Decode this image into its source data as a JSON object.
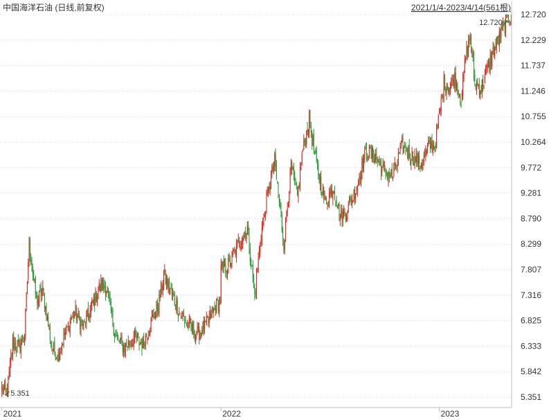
{
  "chart_data": {
    "type": "candlestick",
    "title": "中国海洋石油 (日线,前复权)",
    "range_label": "2021/1/4-2023/4/14(561根)",
    "bar_count": 561,
    "ylim": [
      5.351,
      12.72
    ],
    "yticks": [
      "12.720",
      "12.229",
      "11.737",
      "11.246",
      "10.755",
      "10.264",
      "9.772",
      "9.281",
      "8.790",
      "8.299",
      "7.807",
      "7.316",
      "6.825",
      "6.333",
      "5.842",
      "5.351"
    ],
    "xticks": [
      {
        "label": "2021",
        "index": 0
      },
      {
        "label": "2022",
        "index": 241
      },
      {
        "label": "2023",
        "index": 481
      }
    ],
    "max_marker": {
      "text": "12.720↗",
      "value": 12.72
    },
    "min_marker": {
      "text": "↙5.351",
      "value": 5.351
    },
    "anchors": [
      [
        0,
        5.5
      ],
      [
        6,
        5.45
      ],
      [
        12,
        6.4
      ],
      [
        18,
        6.3
      ],
      [
        25,
        6.55
      ],
      [
        30,
        8.3
      ],
      [
        38,
        7.2
      ],
      [
        45,
        7.4
      ],
      [
        55,
        6.3
      ],
      [
        62,
        6.15
      ],
      [
        70,
        6.6
      ],
      [
        80,
        7.0
      ],
      [
        90,
        6.7
      ],
      [
        100,
        7.15
      ],
      [
        108,
        7.5
      ],
      [
        115,
        7.45
      ],
      [
        125,
        6.5
      ],
      [
        135,
        6.3
      ],
      [
        145,
        6.5
      ],
      [
        155,
        6.35
      ],
      [
        165,
        6.85
      ],
      [
        172,
        7.1
      ],
      [
        178,
        7.7
      ],
      [
        185,
        7.4
      ],
      [
        195,
        7.0
      ],
      [
        205,
        6.75
      ],
      [
        215,
        6.55
      ],
      [
        225,
        6.75
      ],
      [
        235,
        7.1
      ],
      [
        240,
        7.2
      ],
      [
        241,
        7.8
      ],
      [
        250,
        7.9
      ],
      [
        260,
        8.3
      ],
      [
        270,
        8.6
      ],
      [
        278,
        7.3
      ],
      [
        285,
        8.5
      ],
      [
        295,
        9.5
      ],
      [
        300,
        9.9
      ],
      [
        310,
        8.3
      ],
      [
        318,
        9.8
      ],
      [
        325,
        9.2
      ],
      [
        330,
        10.0
      ],
      [
        338,
        10.7
      ],
      [
        345,
        9.9
      ],
      [
        355,
        9.1
      ],
      [
        365,
        9.4
      ],
      [
        372,
        8.8
      ],
      [
        380,
        8.95
      ],
      [
        390,
        9.4
      ],
      [
        400,
        10.1
      ],
      [
        410,
        10.0
      ],
      [
        420,
        9.7
      ],
      [
        430,
        9.6
      ],
      [
        440,
        10.2
      ],
      [
        450,
        10.0
      ],
      [
        462,
        9.85
      ],
      [
        470,
        10.2
      ],
      [
        476,
        10.2
      ],
      [
        481,
        10.8
      ],
      [
        486,
        11.4
      ],
      [
        492,
        11.3
      ],
      [
        498,
        11.5
      ],
      [
        505,
        11.1
      ],
      [
        510,
        11.9
      ],
      [
        515,
        12.3
      ],
      [
        520,
        11.4
      ],
      [
        527,
        11.3
      ],
      [
        534,
        11.7
      ],
      [
        540,
        12.0
      ],
      [
        545,
        12.2
      ],
      [
        550,
        12.4
      ],
      [
        555,
        12.6
      ],
      [
        560,
        12.72
      ]
    ],
    "up_color": "#d6221a",
    "down_color": "#23962b",
    "grid": true
  }
}
